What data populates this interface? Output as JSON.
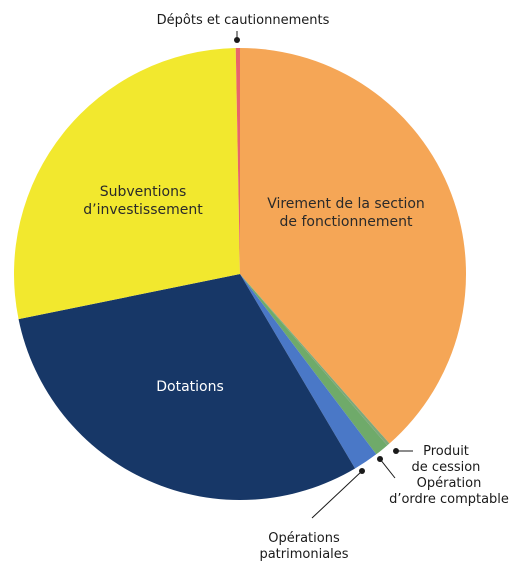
{
  "chart_data": {
    "type": "pie",
    "title": "",
    "slices": [
      {
        "label": "Virement de la section de fonctionnement",
        "value": 38.5,
        "color": "#F5A656",
        "label_color": "#2a2a2a"
      },
      {
        "label": "Produit de cession",
        "value": 0.2,
        "color": "#7CA87A",
        "label_color": "#1a1a1a"
      },
      {
        "label": "Opération d’ordre comptable",
        "value": 1.0,
        "color": "#6FAA6A",
        "label_color": "#1a1a1a"
      },
      {
        "label": "Opérations patrimoniales",
        "value": 1.8,
        "color": "#4A78C7",
        "label_color": "#1a1a1a"
      },
      {
        "label": "Dotations",
        "value": 30.3,
        "color": "#173767",
        "label_color": "#ffffff"
      },
      {
        "label": "Subventions d’investissement",
        "value": 27.9,
        "color": "#F2E82E",
        "label_color": "#2a2a2a"
      },
      {
        "label": "Dépôts et cautionnements",
        "value": 0.3,
        "color": "#E8656A",
        "label_color": "#1a1a1a"
      }
    ],
    "start": "top",
    "direction": "clockwise",
    "legend": "none"
  }
}
